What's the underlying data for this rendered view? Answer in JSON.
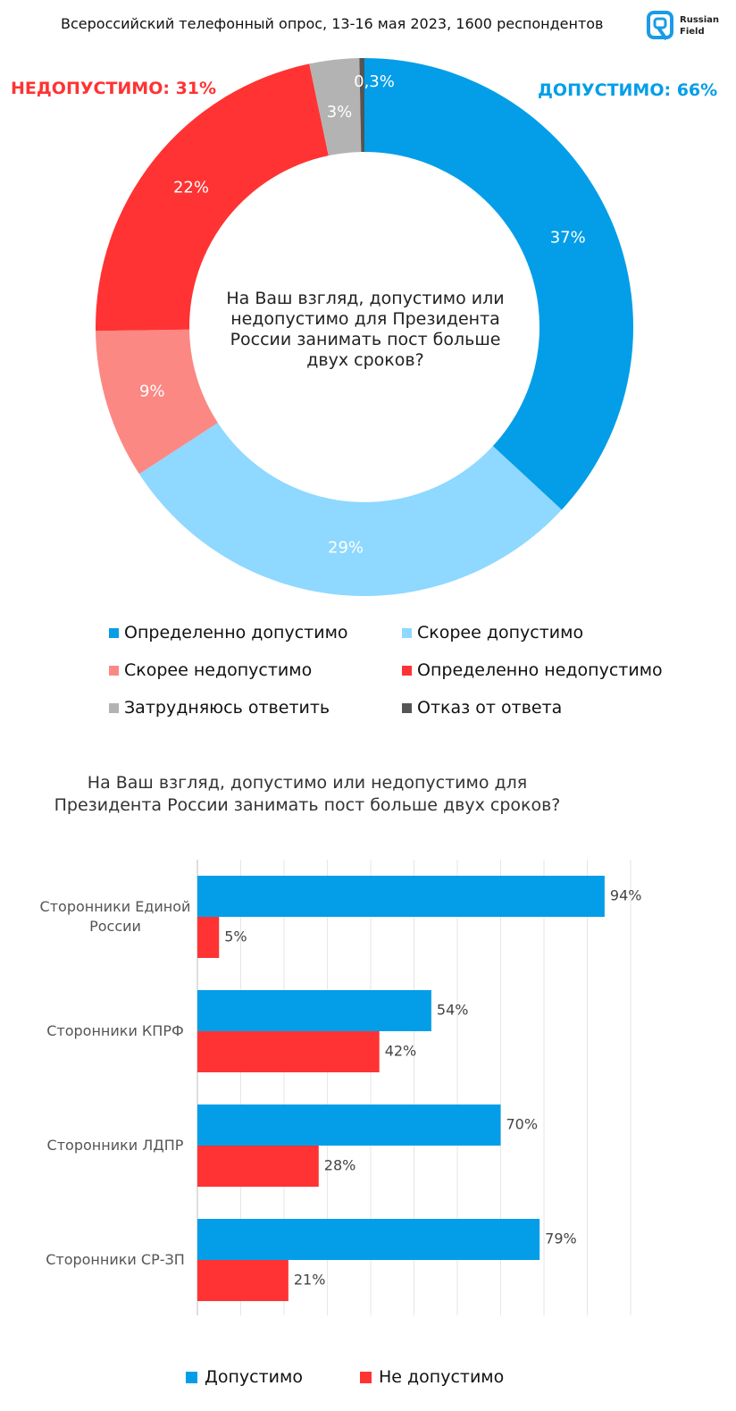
{
  "header": {
    "survey_info": "Всероссийский телефонный опрос, 13-16 мая 2023, 1600 респондентов",
    "logo_text_line1": "Russian",
    "logo_text_line2": "Field"
  },
  "colors": {
    "definitely_acceptable": "#049ee8",
    "rather_acceptable": "#8fd8ff",
    "rather_unacceptable": "#fb8883",
    "definitely_unacceptable": "#ff3333",
    "hard_to_say": "#b3b3b3",
    "refusal": "#555555",
    "logo": "#1a9be6"
  },
  "chart_data": [
    {
      "type": "pie",
      "variant": "donut",
      "title": "На Ваш взгляд, допустимо или недопустимо для Президента России занимать пост больше двух сроков?",
      "totals": {
        "acceptable_label": "ДОПУСТИМО: 66%",
        "unacceptable_label": "НЕДОПУСТИМО: 31%"
      },
      "slices": [
        {
          "name": "Определенно допустимо",
          "value": 37,
          "label": "37%"
        },
        {
          "name": "Скорее допустимо",
          "value": 29,
          "label": "29%"
        },
        {
          "name": "Скорее недопустимо",
          "value": 9,
          "label": "9%"
        },
        {
          "name": "Определенно недопустимо",
          "value": 22,
          "label": "22%"
        },
        {
          "name": "Затрудняюсь ответить",
          "value": 3,
          "label": "3%"
        },
        {
          "name": "Отказ от ответа",
          "value": 0.3,
          "label": "0,3%"
        }
      ],
      "legend": [
        "Определенно допустимо",
        "Скорее допустимо",
        "Скорее недопустимо",
        "Определенно недопустимо",
        "Затрудняюсь ответить",
        "Отказ от ответа"
      ]
    },
    {
      "type": "bar",
      "orientation": "horizontal",
      "title": "На Ваш взгляд, допустимо или недопустимо для Президента России занимать пост больше двух сроков?",
      "categories": [
        "Сторонники Единой России",
        "Сторонники КПРФ",
        "Сторонники ЛДПР",
        "Сторонники СР-ЗП"
      ],
      "category_lines": [
        [
          "Сторонники Единой",
          "России"
        ],
        [
          "Сторонники КПРФ"
        ],
        [
          "Сторонники ЛДПР"
        ],
        [
          "Сторонники СР-ЗП"
        ]
      ],
      "series": [
        {
          "name": "Допустимо",
          "values": [
            94,
            54,
            70,
            79
          ],
          "labels": [
            "94%",
            "54%",
            "70%",
            "79%"
          ]
        },
        {
          "name": "Не допустимо",
          "values": [
            5,
            42,
            28,
            21
          ],
          "labels": [
            "5%",
            "42%",
            "28%",
            "21%"
          ]
        }
      ],
      "xlim": [
        0,
        100
      ],
      "grid": true,
      "legend_position": "bottom"
    }
  ]
}
